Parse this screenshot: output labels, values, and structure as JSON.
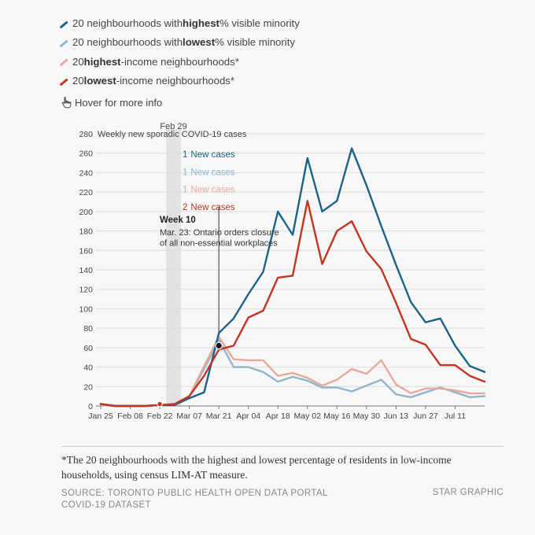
{
  "legend": {
    "items": [
      {
        "color": "#1b6488",
        "text_pre": "20 neighbourhoods with ",
        "text_bold": "highest",
        "text_post": " % visible minority"
      },
      {
        "color": "#8fb5cc",
        "text_pre": "20 neighbourhoods with ",
        "text_bold": "lowest",
        "text_post": " % visible minority"
      },
      {
        "color": "#e8a99c",
        "text_pre": "20 ",
        "text_bold": "highest",
        "text_post": "-income neighbourhoods*"
      },
      {
        "color": "#c33521",
        "text_pre": "20 ",
        "text_bold": "lowest",
        "text_post": "-income neighbourhoods*"
      }
    ]
  },
  "hover_hint": "Hover for more info",
  "footnote": "*The 20 neighbourhoods with the highest and lowest percentage of residents in low-income households, using census LIM-AT measure.",
  "source": "SOURCE: TORONTO PUBLIC HEALTH OPEN DATA PORTAL COVID-19 DATASET",
  "credit": "STAR GRAPHIC",
  "chart_data": {
    "type": "line",
    "title": "Weekly new sporadic COVID-19 cases",
    "ylim": [
      0,
      280
    ],
    "yticks": [
      0,
      20,
      40,
      60,
      80,
      100,
      120,
      140,
      160,
      180,
      200,
      220,
      240,
      260,
      280
    ],
    "x_tick_labels": [
      "Jan 25",
      "Feb 08",
      "Feb 22",
      "Mar 07",
      "Mar 21",
      "Apr 04",
      "Apr 18",
      "May 02",
      "May 16",
      "May 30",
      "Jun 13",
      "Jun 27",
      "Jul 11"
    ],
    "x_tick_weeks": [
      0,
      2,
      4,
      6,
      8,
      10,
      12,
      14,
      16,
      18,
      20,
      22,
      24
    ],
    "n_weeks": 27,
    "shade": {
      "start_week": 4.43,
      "end_week": 5.43,
      "label": "Feb 29"
    },
    "series": [
      {
        "name": "20 neighbourhoods with highest % visible minority",
        "color": "#1b6488",
        "values": [
          2,
          0,
          0,
          0,
          1,
          1,
          8,
          14,
          75,
          90,
          115,
          138,
          200,
          176,
          255,
          200,
          211,
          265,
          227,
          185,
          145,
          107,
          86,
          90,
          62,
          41,
          35
        ]
      },
      {
        "name": "20 neighbourhoods with lowest % visible minority",
        "color": "#8fb5cc",
        "values": [
          1,
          0,
          0,
          0,
          1,
          1,
          10,
          38,
          68,
          40,
          40,
          35,
          25,
          30,
          26,
          19,
          19,
          15,
          21,
          27,
          12,
          9,
          14,
          19,
          14,
          9,
          10
        ]
      },
      {
        "name": "20 highest-income neighbourhoods*",
        "color": "#e8a99c",
        "values": [
          1,
          0,
          0,
          0,
          1,
          1,
          10,
          41,
          71,
          48,
          47,
          47,
          31,
          34,
          29,
          21,
          27,
          38,
          33,
          47,
          22,
          13,
          18,
          18,
          16,
          13,
          13
        ]
      },
      {
        "name": "20 lowest-income neighbourhoods*",
        "color": "#c33521",
        "values": [
          2,
          0,
          0,
          0,
          1,
          2,
          10,
          31,
          58,
          62,
          91,
          98,
          132,
          134,
          211,
          146,
          180,
          190,
          159,
          141,
          106,
          69,
          63,
          42,
          42,
          31,
          25
        ]
      }
    ],
    "tooltip": {
      "week": 8,
      "value": 62,
      "rows": [
        {
          "value": "1",
          "label": "New cases",
          "color": "#1b6488"
        },
        {
          "value": "1",
          "label": "New cases",
          "color": "#8fb5cc"
        },
        {
          "value": "1",
          "label": "New cases",
          "color": "#e8a99c"
        },
        {
          "value": "2",
          "label": "New cases",
          "color": "#c33521"
        }
      ]
    },
    "annotation": {
      "week": 8,
      "title": "Week 10",
      "lines": [
        "Mar. 23: Ontario orders closure",
        "of all non-essential workplaces"
      ]
    },
    "hover_marker": {
      "week": 4,
      "value": 2
    }
  }
}
